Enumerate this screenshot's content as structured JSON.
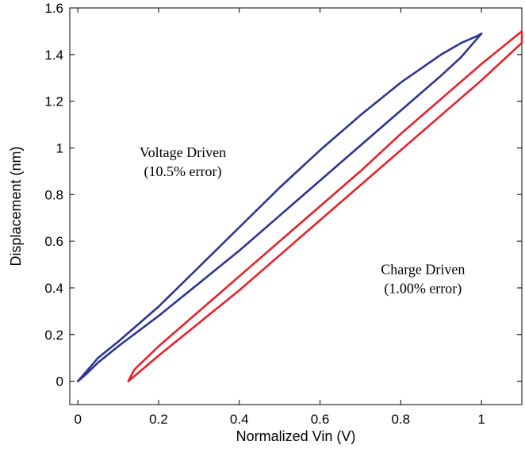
{
  "chart_data": {
    "type": "line",
    "xlabel": "Normalized Vin (V)",
    "ylabel": "Displacement (nm)",
    "xlim": [
      -0.02,
      1.1
    ],
    "ylim": [
      -0.1,
      1.6
    ],
    "xticks": [
      0,
      0.2,
      0.4,
      0.6,
      0.8,
      1
    ],
    "yticks": [
      0,
      0.2,
      0.4,
      0.6,
      0.8,
      1,
      1.2,
      1.4,
      1.6
    ],
    "xtick_labels": [
      "0",
      "0.2",
      "0.4",
      "0.6",
      "0.8",
      "1"
    ],
    "ytick_labels": [
      "0",
      "0.2",
      "0.4",
      "0.6",
      "0.8",
      "1",
      "1.2",
      "1.4",
      "1.6"
    ],
    "grid": false,
    "series": [
      {
        "color": "#2b3592",
        "x": [
          0,
          0.02,
          0.05,
          0.1,
          0.2,
          0.3,
          0.4,
          0.5,
          0.6,
          0.7,
          0.8,
          0.9,
          0.95,
          0.99,
          1.0,
          0.99,
          0.95,
          0.9,
          0.8,
          0.7,
          0.6,
          0.5,
          0.4,
          0.3,
          0.2,
          0.1,
          0.05,
          0.02,
          0.0
        ],
        "y": [
          0,
          0.04,
          0.1,
          0.17,
          0.32,
          0.49,
          0.66,
          0.83,
          0.99,
          1.14,
          1.28,
          1.4,
          1.45,
          1.48,
          1.49,
          1.47,
          1.39,
          1.31,
          1.16,
          1.01,
          0.86,
          0.71,
          0.56,
          0.42,
          0.28,
          0.15,
          0.08,
          0.03,
          0
        ]
      },
      {
        "color": "#e8202a",
        "x": [
          0.125,
          0.2,
          0.3,
          0.4,
          0.5,
          0.6,
          0.7,
          0.8,
          0.9,
          1.0,
          1.05,
          1.1,
          1.1,
          1.05,
          1.0,
          0.9,
          0.8,
          0.7,
          0.6,
          0.5,
          0.4,
          0.3,
          0.2,
          0.14,
          0.125
        ],
        "y": [
          0,
          0.11,
          0.25,
          0.39,
          0.54,
          0.69,
          0.84,
          0.99,
          1.14,
          1.29,
          1.37,
          1.45,
          1.5,
          1.43,
          1.36,
          1.21,
          1.06,
          0.9,
          0.75,
          0.6,
          0.45,
          0.3,
          0.15,
          0.05,
          0
        ]
      }
    ],
    "annotations": [
      {
        "line1": "Voltage Driven",
        "line2": "(10.5% error)",
        "x": 0.26,
        "y": 0.96
      },
      {
        "line1": "Charge Driven",
        "line2": "(1.00% error)",
        "x": 0.855,
        "y": 0.46
      }
    ]
  }
}
